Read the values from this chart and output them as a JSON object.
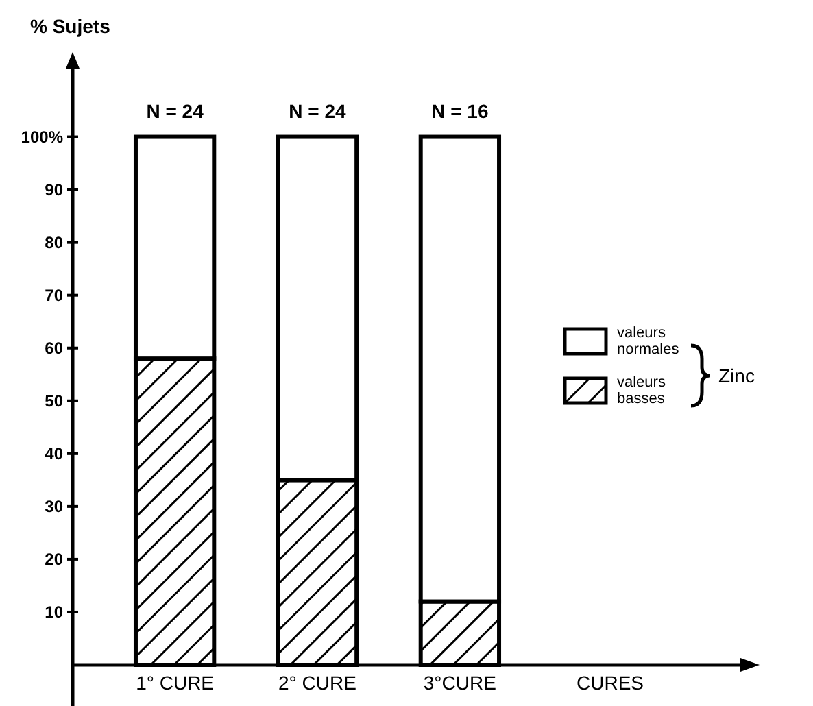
{
  "chart_data": {
    "type": "bar",
    "stacked": true,
    "ylabel": "% Sujets",
    "xlabel": "CURES",
    "legend_title": "Zinc",
    "legend": "right",
    "categories": [
      "1° CURE",
      "2° CURE",
      "3°CURE"
    ],
    "series": [
      {
        "name": "valeurs basses",
        "color": "#000000",
        "values": [
          58,
          35,
          12
        ]
      },
      {
        "name": "valeurs normales",
        "color": "#ffffff",
        "values": [
          42,
          65,
          88
        ]
      }
    ],
    "ylim": [
      0,
      115
    ],
    "yticks": [
      10,
      20,
      30,
      40,
      50,
      60,
      70,
      80,
      90,
      {
        "value": 100,
        "label": "100%"
      }
    ],
    "annotations": [
      {
        "text": "N = 24",
        "x": "1° CURE",
        "y": 100
      },
      {
        "text": "N = 24",
        "x": "2° CURE",
        "y": 100
      },
      {
        "text": "N = 16",
        "x": "3°CURE",
        "y": 100
      }
    ]
  }
}
